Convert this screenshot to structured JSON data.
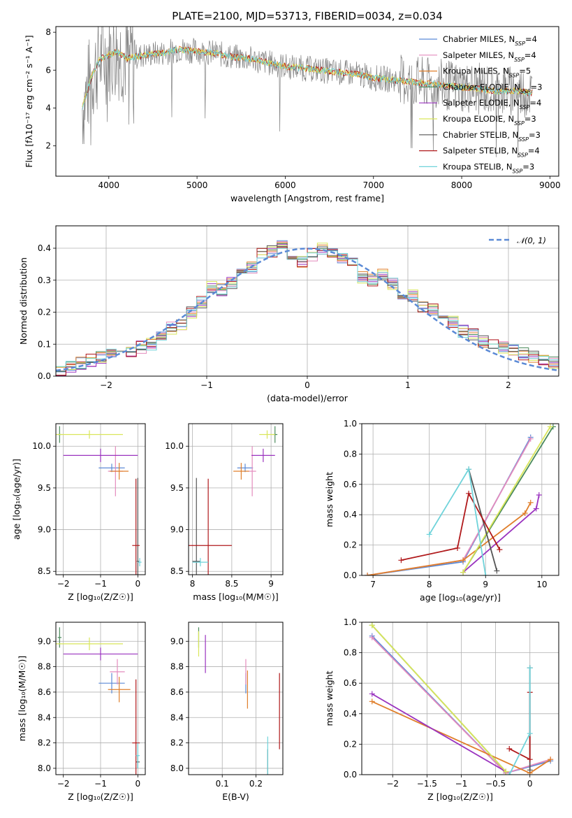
{
  "title": "PLATE=2100, MJD=53713, FIBERID=0034, z=0.034",
  "colors": {
    "chabrier_miles": "#5b8ad6",
    "salpeter_miles": "#e48bbd",
    "kroupa_miles": "#e07f2b",
    "chabrier_elodie": "#4a8a5b",
    "salpeter_elodie": "#9a33bf",
    "kroupa_elodie": "#d9e65a",
    "chabrier_stelib": "#555555",
    "salpeter_stelib": "#b0191b",
    "kroupa_stelib": "#6fd3da",
    "spectrum": "#808080",
    "normal": "#5b8ad6"
  },
  "legend": [
    {
      "key": "chabrier_miles",
      "label": "Chabrier MILES, N",
      "sub": "SSP",
      "suffix": "=4"
    },
    {
      "key": "salpeter_miles",
      "label": "Salpeter MILES, N",
      "sub": "SSP",
      "suffix": "=4"
    },
    {
      "key": "kroupa_miles",
      "label": "Kroupa MILES, N",
      "sub": "SSP",
      "suffix": "=5"
    },
    {
      "key": "chabrier_elodie",
      "label": "Chabrier ELODIE, N",
      "sub": "SSP",
      "suffix": "=3"
    },
    {
      "key": "salpeter_elodie",
      "label": "Salpeter ELODIE, N",
      "sub": "SSP",
      "suffix": "=4"
    },
    {
      "key": "kroupa_elodie",
      "label": "Kroupa ELODIE, N",
      "sub": "SSP",
      "suffix": "=3"
    },
    {
      "key": "chabrier_stelib",
      "label": "Chabrier STELIB, N",
      "sub": "SSP",
      "suffix": "=3"
    },
    {
      "key": "salpeter_stelib",
      "label": "Salpeter STELIB, N",
      "sub": "SSP",
      "suffix": "=4"
    },
    {
      "key": "kroupa_stelib",
      "label": "Kroupa STELIB, N",
      "sub": "SSP",
      "suffix": "=3"
    }
  ],
  "chart_data": [
    {
      "id": "spectrum",
      "type": "line",
      "xlabel": "wavelength [Angstrom, rest frame]",
      "ylabel": "Flux [fλ10⁻¹⁷ erg cm⁻² s⁻¹ A⁻¹]",
      "xlim": [
        3400,
        9100
      ],
      "ylim": [
        0.4,
        8.3
      ],
      "xticks": [
        4000,
        5000,
        6000,
        7000,
        8000,
        9000
      ],
      "yticks": [
        2,
        4,
        6,
        8
      ],
      "model_points": {
        "x": [
          3700,
          3800,
          3900,
          4000,
          4100,
          4200,
          4400,
          4600,
          4800,
          5000,
          5200,
          5400,
          5600,
          5800,
          6000,
          6200,
          6400,
          6600,
          6800,
          7000,
          7200,
          7400,
          7600,
          7800,
          8000,
          8200,
          8400,
          8600,
          8800
        ],
        "y": [
          4.0,
          5.6,
          6.6,
          6.8,
          7.0,
          6.6,
          6.8,
          6.9,
          7.1,
          7.0,
          6.9,
          6.7,
          6.6,
          6.4,
          6.2,
          6.1,
          6.0,
          5.9,
          5.8,
          5.6,
          5.5,
          5.4,
          5.3,
          5.2,
          5.1,
          5.0,
          4.9,
          4.9,
          4.8
        ]
      }
    },
    {
      "id": "residuals",
      "type": "line",
      "xlabel": "(data-model)/error",
      "ylabel": "Normed distribution",
      "xlim": [
        -2.5,
        2.5
      ],
      "ylim": [
        0,
        0.47
      ],
      "xticks": [
        -2,
        -1,
        0,
        1,
        2
      ],
      "yticks": [
        0.0,
        0.1,
        0.2,
        0.3,
        0.4
      ],
      "legend_label": "𝒩(0, 1)",
      "hist_x": [
        -2.5,
        -2.4,
        -2.3,
        -2.2,
        -2.1,
        -2.0,
        -1.9,
        -1.8,
        -1.7,
        -1.6,
        -1.5,
        -1.4,
        -1.3,
        -1.2,
        -1.1,
        -1.0,
        -0.9,
        -0.8,
        -0.7,
        -0.6,
        -0.5,
        -0.4,
        -0.3,
        -0.2,
        -0.1,
        0.0,
        0.1,
        0.2,
        0.3,
        0.4,
        0.5,
        0.6,
        0.7,
        0.8,
        0.9,
        1.0,
        1.1,
        1.2,
        1.3,
        1.4,
        1.5,
        1.6,
        1.7,
        1.8,
        1.9,
        2.0,
        2.1,
        2.2,
        2.3,
        2.4
      ],
      "hist_y": [
        0.02,
        0.03,
        0.04,
        0.05,
        0.06,
        0.07,
        0.06,
        0.08,
        0.09,
        0.1,
        0.12,
        0.15,
        0.16,
        0.2,
        0.23,
        0.28,
        0.27,
        0.29,
        0.32,
        0.34,
        0.38,
        0.39,
        0.41,
        0.37,
        0.36,
        0.38,
        0.4,
        0.39,
        0.37,
        0.36,
        0.31,
        0.3,
        0.32,
        0.29,
        0.26,
        0.25,
        0.22,
        0.21,
        0.19,
        0.17,
        0.14,
        0.13,
        0.11,
        0.1,
        0.09,
        0.08,
        0.07,
        0.06,
        0.05,
        0.04
      ]
    },
    {
      "id": "age_vs_Z",
      "type": "scatter",
      "xlabel": "Z [log₁₀(Z/Z☉)]",
      "ylabel": "age  [log₁₀(age/yr)]",
      "xlim": [
        -2.2,
        0.2
      ],
      "ylim": [
        8.46,
        10.27
      ],
      "xticks": [
        -2,
        -1,
        0
      ],
      "yticks": [
        8.5,
        9.0,
        9.5,
        10.0
      ],
      "points": [
        {
          "key": "chabrier_miles",
          "x": -0.7,
          "y": 9.74,
          "xe": 0.35,
          "ye": 0.05
        },
        {
          "key": "salpeter_miles",
          "x": -0.6,
          "y": 9.7,
          "xe": 0.2,
          "ye": 0.3
        },
        {
          "key": "kroupa_miles",
          "x": -0.5,
          "y": 9.7,
          "xe": 0.25,
          "ye": 0.1
        },
        {
          "key": "chabrier_elodie",
          "x": -2.1,
          "y": 10.14,
          "xe": 0.05,
          "ye": 0.1
        },
        {
          "key": "salpeter_elodie",
          "x": -1.0,
          "y": 9.89,
          "xe": 1.0,
          "ye": 0.08
        },
        {
          "key": "kroupa_elodie",
          "x": -1.3,
          "y": 10.14,
          "xe": 0.9,
          "ye": 0.05
        },
        {
          "key": "chabrier_stelib",
          "x": 0.0,
          "y": 8.62,
          "xe": 0.03,
          "ye": 1.0
        },
        {
          "key": "salpeter_stelib",
          "x": -0.05,
          "y": 8.81,
          "xe": 0.1,
          "ye": 0.8
        },
        {
          "key": "kroupa_stelib",
          "x": 0.05,
          "y": 8.61,
          "xe": 0.05,
          "ye": 0.05
        }
      ]
    },
    {
      "id": "age_vs_mass",
      "type": "scatter",
      "xlabel": "mass [log₁₀(M/M☉)]",
      "ylabel": "",
      "xlim": [
        7.95,
        9.15
      ],
      "ylim": [
        8.46,
        10.27
      ],
      "xticks": [
        8.0,
        8.5,
        9.0
      ],
      "yticks": [
        8.5,
        9.0,
        9.5,
        10.0
      ],
      "points": [
        {
          "key": "chabrier_miles",
          "x": 8.67,
          "y": 9.74,
          "xe": 0.1,
          "ye": 0.05
        },
        {
          "key": "salpeter_miles",
          "x": 8.76,
          "y": 9.7,
          "xe": 0.05,
          "ye": 0.3
        },
        {
          "key": "kroupa_miles",
          "x": 8.62,
          "y": 9.7,
          "xe": 0.1,
          "ye": 0.1
        },
        {
          "key": "chabrier_elodie",
          "x": 9.05,
          "y": 10.14,
          "xe": 0.03,
          "ye": 0.1
        },
        {
          "key": "salpeter_elodie",
          "x": 8.9,
          "y": 9.89,
          "xe": 0.15,
          "ye": 0.08
        },
        {
          "key": "kroupa_elodie",
          "x": 8.95,
          "y": 10.14,
          "xe": 0.1,
          "ye": 0.05
        },
        {
          "key": "chabrier_stelib",
          "x": 8.05,
          "y": 8.62,
          "xe": 0.05,
          "ye": 1.0
        },
        {
          "key": "salpeter_stelib",
          "x": 8.2,
          "y": 8.81,
          "xe": 0.3,
          "ye": 0.8
        },
        {
          "key": "kroupa_stelib",
          "x": 8.1,
          "y": 8.61,
          "xe": 0.1,
          "ye": 0.05
        }
      ]
    },
    {
      "id": "massweight_vs_age",
      "type": "line",
      "xlabel": "age  [log₁₀(age/yr)]",
      "ylabel": "mass weight",
      "xlim": [
        6.8,
        10.3
      ],
      "ylim": [
        0,
        1
      ],
      "xticks": [
        7,
        8,
        9,
        10
      ],
      "yticks": [
        0.0,
        0.2,
        0.4,
        0.6,
        0.8,
        1.0
      ],
      "series": [
        {
          "key": "chabrier_miles",
          "x": [
            6.9,
            8.6,
            9.8
          ],
          "y": [
            0.0,
            0.09,
            0.91
          ]
        },
        {
          "key": "salpeter_miles",
          "x": [
            6.9,
            8.6,
            9.8
          ],
          "y": [
            0.0,
            0.1,
            0.9
          ]
        },
        {
          "key": "kroupa_miles",
          "x": [
            6.9,
            8.6,
            9.7,
            9.8
          ],
          "y": [
            0.0,
            0.1,
            0.41,
            0.48
          ]
        },
        {
          "key": "chabrier_elodie",
          "x": [
            8.6,
            10.2
          ],
          "y": [
            0.02,
            0.98
          ]
        },
        {
          "key": "salpeter_elodie",
          "x": [
            8.6,
            9.9,
            9.95
          ],
          "y": [
            0.02,
            0.44,
            0.53
          ]
        },
        {
          "key": "kroupa_elodie",
          "x": [
            8.6,
            10.15
          ],
          "y": [
            0.02,
            0.98
          ]
        },
        {
          "key": "chabrier_stelib",
          "x": [
            8.7,
            9.2
          ],
          "y": [
            0.7,
            0.03
          ]
        },
        {
          "key": "salpeter_stelib",
          "x": [
            7.5,
            8.5,
            8.7,
            9.25
          ],
          "y": [
            0.1,
            0.18,
            0.54,
            0.17
          ]
        },
        {
          "key": "kroupa_stelib",
          "x": [
            8.0,
            8.7,
            9.0
          ],
          "y": [
            0.27,
            0.7,
            0.0
          ]
        }
      ]
    },
    {
      "id": "mass_vs_Z",
      "type": "scatter",
      "xlabel": "Z [log₁₀(Z/Z☉)]",
      "ylabel": "mass [log₁₀(M/M☉)]",
      "xlim": [
        -2.2,
        0.2
      ],
      "ylim": [
        7.95,
        9.15
      ],
      "xticks": [
        -2,
        -1,
        0
      ],
      "yticks": [
        8.0,
        8.2,
        8.4,
        8.6,
        8.8,
        9.0
      ],
      "points": [
        {
          "key": "chabrier_miles",
          "x": -0.7,
          "y": 8.67,
          "xe": 0.35,
          "ye": 0.08
        },
        {
          "key": "salpeter_miles",
          "x": -0.55,
          "y": 8.76,
          "xe": 0.2,
          "ye": 0.1
        },
        {
          "key": "kroupa_miles",
          "x": -0.5,
          "y": 8.62,
          "xe": 0.3,
          "ye": 0.1
        },
        {
          "key": "chabrier_elodie",
          "x": -2.1,
          "y": 9.03,
          "xe": 0.05,
          "ye": 0.08
        },
        {
          "key": "salpeter_elodie",
          "x": -1.0,
          "y": 8.9,
          "xe": 1.0,
          "ye": 0.05
        },
        {
          "key": "kroupa_elodie",
          "x": -1.3,
          "y": 8.98,
          "xe": 0.9,
          "ye": 0.05
        },
        {
          "key": "chabrier_stelib",
          "x": 0.0,
          "y": 8.05,
          "xe": 0.05,
          "ye": 0.05
        },
        {
          "key": "salpeter_stelib",
          "x": -0.05,
          "y": 8.2,
          "xe": 0.1,
          "ye": 0.5
        },
        {
          "key": "kroupa_stelib",
          "x": 0.0,
          "y": 8.1,
          "xe": 0.05,
          "ye": 0.1
        }
      ]
    },
    {
      "id": "mass_vs_ebv",
      "type": "scatter",
      "xlabel": "E(B-V)",
      "ylabel": "",
      "xlim": [
        0.0,
        0.28
      ],
      "ylim": [
        7.95,
        9.15
      ],
      "xticks": [
        0.1,
        0.2
      ],
      "yticks": [
        8.0,
        8.2,
        8.4,
        8.6,
        8.8,
        9.0
      ],
      "points": [
        {
          "key": "chabrier_miles",
          "x": 0.17,
          "y": 8.67,
          "xe": 0.0,
          "ye": 0.08
        },
        {
          "key": "salpeter_miles",
          "x": 0.17,
          "y": 8.76,
          "xe": 0.0,
          "ye": 0.1
        },
        {
          "key": "kroupa_miles",
          "x": 0.175,
          "y": 8.62,
          "xe": 0.0,
          "ye": 0.15
        },
        {
          "key": "chabrier_elodie",
          "x": 0.03,
          "y": 9.03,
          "xe": 0.0,
          "ye": 0.08
        },
        {
          "key": "salpeter_elodie",
          "x": 0.05,
          "y": 8.9,
          "xe": 0.0,
          "ye": 0.15
        },
        {
          "key": "kroupa_elodie",
          "x": 0.03,
          "y": 8.98,
          "xe": 0.0,
          "ye": 0.1
        },
        {
          "key": "chabrier_stelib",
          "x": 0.235,
          "y": 8.05,
          "xe": 0.0,
          "ye": 0.1
        },
        {
          "key": "salpeter_stelib",
          "x": 0.27,
          "y": 8.45,
          "xe": 0.0,
          "ye": 0.3
        },
        {
          "key": "kroupa_stelib",
          "x": 0.235,
          "y": 8.1,
          "xe": 0.0,
          "ye": 0.15
        }
      ]
    },
    {
      "id": "massweight_vs_Z",
      "type": "line",
      "xlabel": "Z [log₁₀(Z/Z☉)]",
      "ylabel": "mass weight",
      "xlim": [
        -2.45,
        0.42
      ],
      "ylim": [
        0,
        1
      ],
      "xticks": [
        -2.0,
        -1.5,
        -1.0,
        -0.5,
        0.0
      ],
      "yticks": [
        0.0,
        0.2,
        0.4,
        0.6,
        0.8,
        1.0
      ],
      "series": [
        {
          "key": "chabrier_miles",
          "x": [
            -2.3,
            -0.35,
            0.3
          ],
          "y": [
            0.91,
            0.01,
            0.09
          ]
        },
        {
          "key": "salpeter_miles",
          "x": [
            -2.3,
            -0.35,
            0.3
          ],
          "y": [
            0.9,
            0.01,
            0.1
          ]
        },
        {
          "key": "kroupa_miles",
          "x": [
            -2.3,
            0.0,
            0.3
          ],
          "y": [
            0.48,
            0.01,
            0.1
          ]
        },
        {
          "key": "chabrier_elodie",
          "x": [
            -2.3,
            -0.35
          ],
          "y": [
            0.98,
            0.02
          ]
        },
        {
          "key": "salpeter_elodie",
          "x": [
            -2.3,
            -0.35
          ],
          "y": [
            0.53,
            0.02
          ]
        },
        {
          "key": "kroupa_elodie",
          "x": [
            -2.3,
            -0.35
          ],
          "y": [
            0.98,
            0.02
          ]
        },
        {
          "key": "chabrier_stelib",
          "x": [
            0.0,
            0.0
          ],
          "y": [
            0.03,
            0.7
          ]
        },
        {
          "key": "salpeter_stelib",
          "x": [
            -0.3,
            0.0,
            0.0
          ],
          "y": [
            0.17,
            0.1,
            0.54
          ]
        },
        {
          "key": "kroupa_stelib",
          "x": [
            -0.3,
            0.0,
            0.0
          ],
          "y": [
            0.0,
            0.27,
            0.7
          ]
        }
      ]
    }
  ]
}
